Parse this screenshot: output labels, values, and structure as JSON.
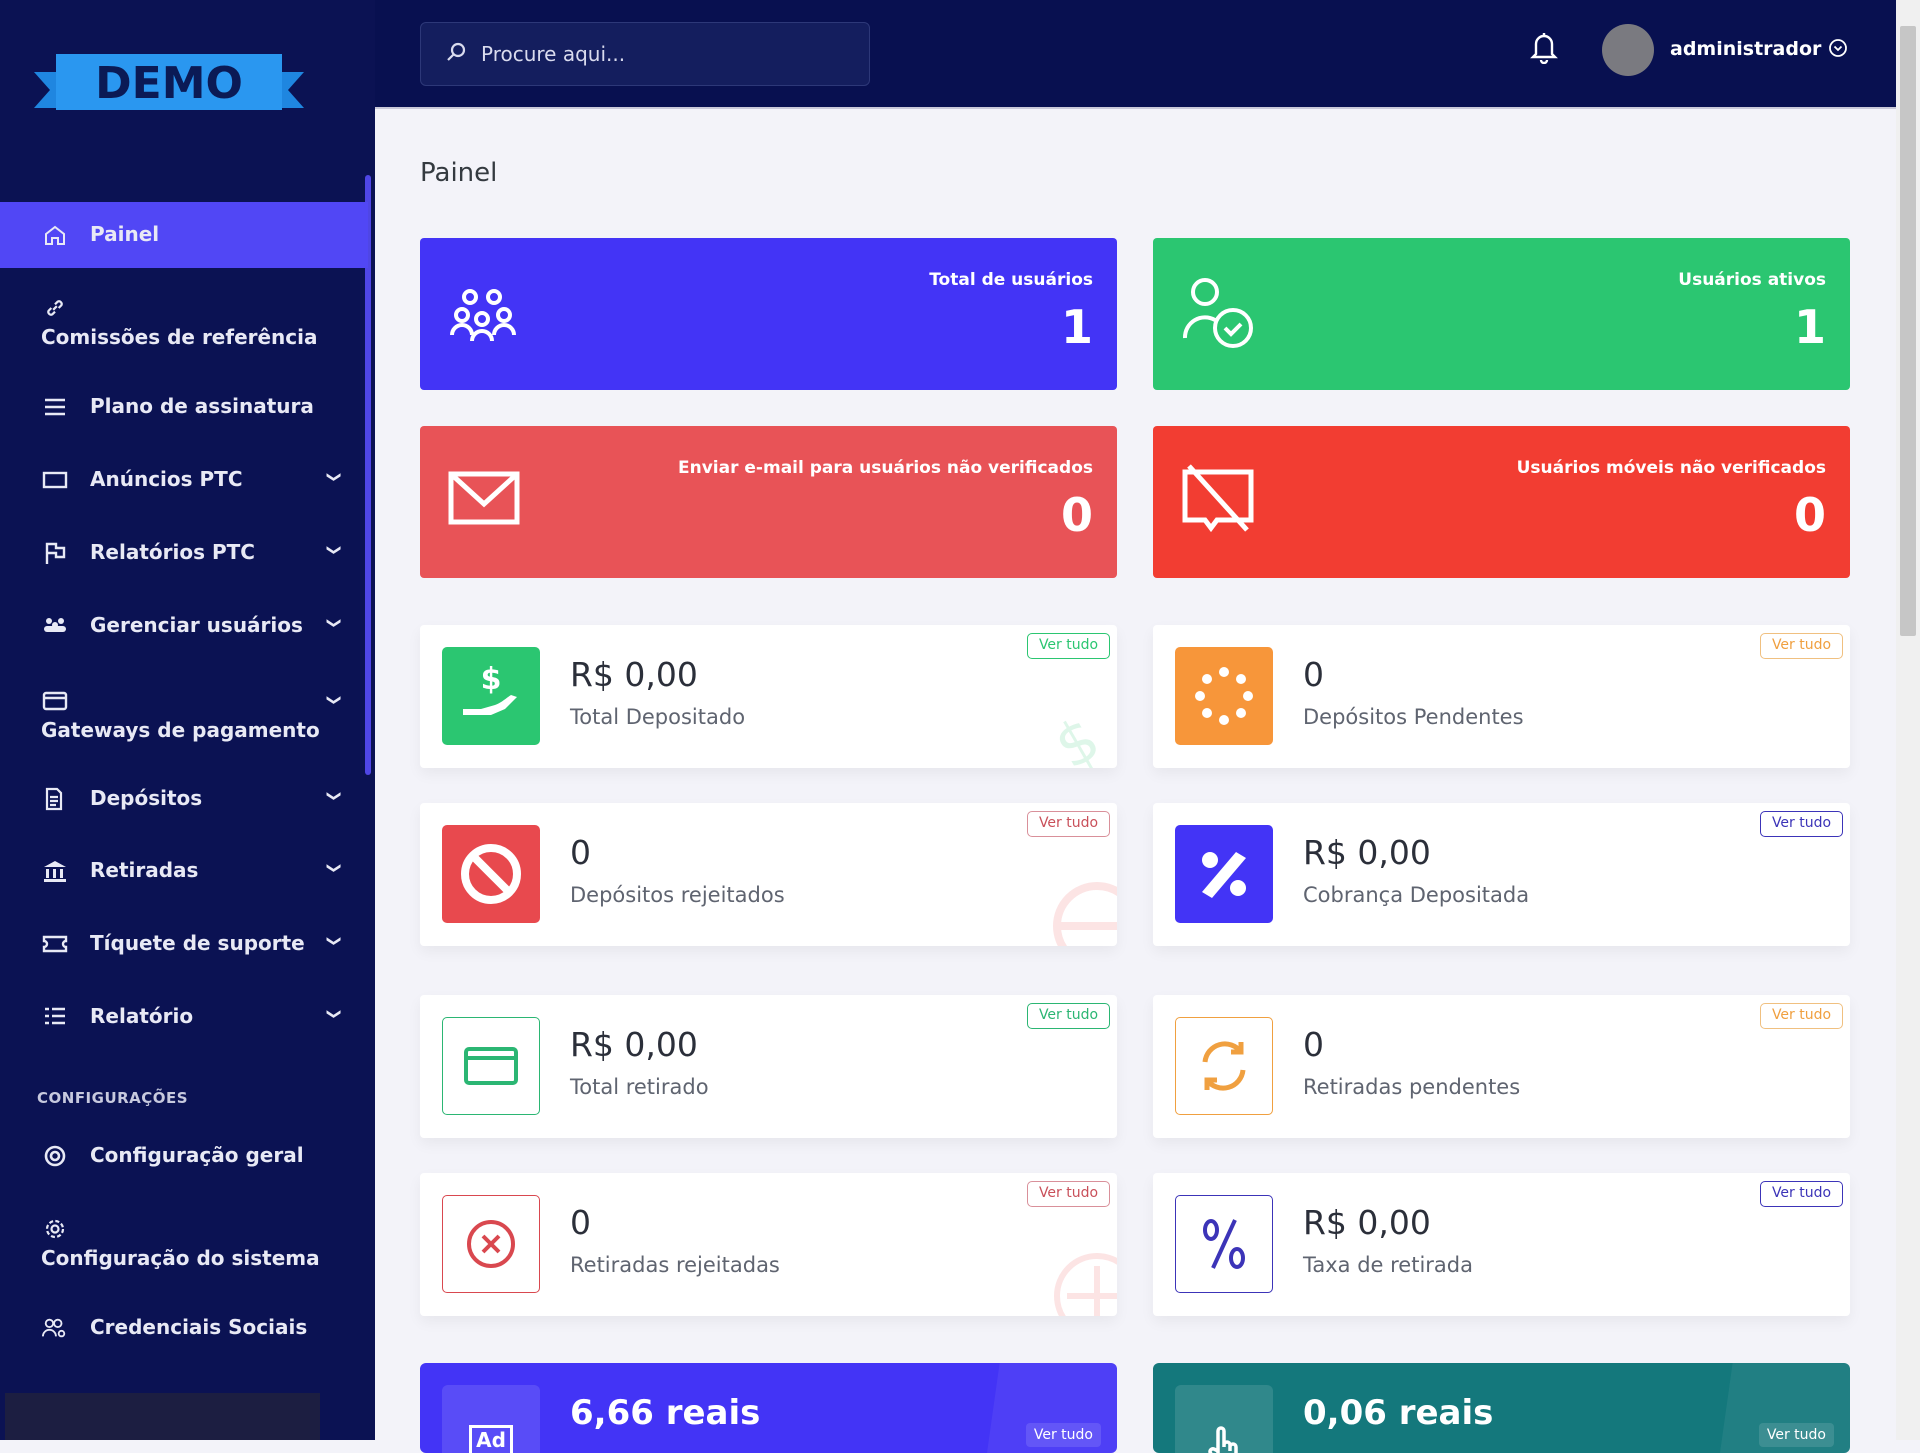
{
  "logo_text": "DEMO",
  "sidebar": {
    "items": [
      {
        "label": "Painel",
        "icon": "home-icon"
      },
      {
        "label": "Comissões de referência",
        "icon": "link-icon"
      },
      {
        "label": "Plano de assinatura",
        "icon": "menu-icon"
      },
      {
        "label": "Anúncios PTC",
        "icon": "ad-icon"
      },
      {
        "label": "Relatórios PTC",
        "icon": "flag-icon"
      },
      {
        "label": "Gerenciar usuários",
        "icon": "users-icon"
      },
      {
        "label": "Gateways de pagamento",
        "icon": "credit-card-icon"
      },
      {
        "label": "Depósitos",
        "icon": "invoice-icon"
      },
      {
        "label": "Retiradas",
        "icon": "bank-icon"
      },
      {
        "label": "Tíquete de suporte",
        "icon": "ticket-icon"
      },
      {
        "label": "Relatório",
        "icon": "list-icon"
      }
    ],
    "section": "CONFIGURAÇÕES",
    "settings": [
      {
        "label": "Configuração geral",
        "icon": "lifebuoy-icon"
      },
      {
        "label": "Configuração do sistema",
        "icon": "gear-icon"
      },
      {
        "label": "Credenciais Sociais",
        "icon": "users-gear-icon"
      }
    ]
  },
  "header": {
    "search_placeholder": "Procure aqui...",
    "username": "administrador"
  },
  "page_title": "Painel",
  "stats": [
    {
      "title": "Total de usuários",
      "value": "1",
      "color": "#4334f6"
    },
    {
      "title": "Usuários ativos",
      "value": "1",
      "color": "#2bc671"
    },
    {
      "title": "Enviar e-mail para usuários não verificados",
      "value": "0",
      "color": "#e85357"
    },
    {
      "title": "Usuários móveis não verificados",
      "value": "0",
      "color": "#f23d32"
    }
  ],
  "widgets": [
    {
      "value": "R$ 0,00",
      "label": "Total Depositado",
      "link": "Ver tudo",
      "color": "#2bc671"
    },
    {
      "value": "0",
      "label": "Depósitos Pendentes",
      "link": "Ver tudo",
      "color": "#f7963a"
    },
    {
      "value": "0",
      "label": "Depósitos rejeitados",
      "link": "Ver tudo",
      "color": "#e8494e"
    },
    {
      "value": "R$ 0,00",
      "label": "Cobrança Depositada",
      "link": "Ver tudo",
      "color": "#4334f6"
    },
    {
      "value": "R$ 0,00",
      "label": "Total retirado",
      "link": "Ver tudo",
      "color": "#2bb673"
    },
    {
      "value": "0",
      "label": "Retiradas pendentes",
      "link": "Ver tudo",
      "color": "#f0a040"
    },
    {
      "value": "0",
      "label": "Retiradas rejeitadas",
      "link": "Ver tudo",
      "color": "#d9484f"
    },
    {
      "value": "R$ 0,00",
      "label": "Taxa de retirada",
      "link": "Ver tudo",
      "color": "#3c34b8"
    }
  ],
  "bottom": [
    {
      "value": "6,66 reais",
      "link": "Ver tudo",
      "icon_text": "Ad",
      "color": "#4334f6"
    },
    {
      "value": "0,06 reais",
      "link": "Ver tudo",
      "color": "#14787c"
    }
  ]
}
